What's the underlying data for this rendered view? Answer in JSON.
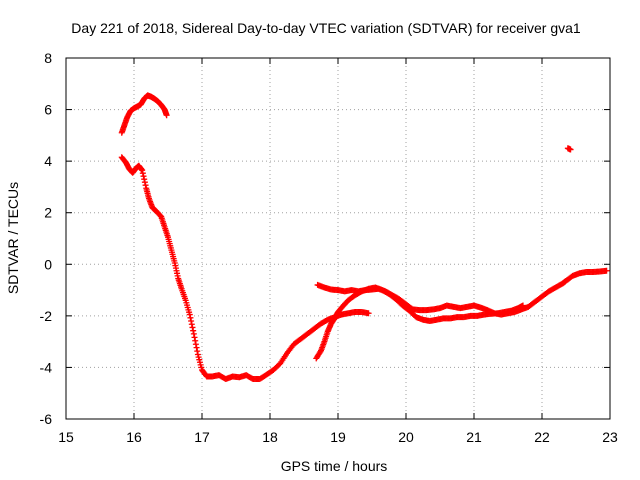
{
  "chart_data": {
    "type": "scatter",
    "title": "Day 221 of 2018, Sidereal Day-to-day VTEC variation (SDTVAR) for receiver gva1",
    "xlabel": "GPS time / hours",
    "ylabel": "SDTVAR / TECUs",
    "xlim": [
      15,
      23
    ],
    "ylim": [
      -6,
      8
    ],
    "xticks": [
      "15",
      "16",
      "17",
      "18",
      "19",
      "20",
      "21",
      "22",
      "23"
    ],
    "yticks": [
      "-6",
      "-4",
      "-2",
      "0",
      "2",
      "4",
      "6",
      "8"
    ],
    "grid": true,
    "marker": "+",
    "series": [
      {
        "name": "SDTVAR",
        "color": "#ff0000",
        "segments": [
          [
            [
              15.82,
              5.1
            ],
            [
              15.86,
              5.4
            ],
            [
              15.9,
              5.7
            ],
            [
              15.95,
              5.95
            ],
            [
              16.0,
              6.05
            ],
            [
              16.05,
              6.12
            ],
            [
              16.1,
              6.2
            ],
            [
              16.15,
              6.42
            ],
            [
              16.2,
              6.55
            ],
            [
              16.25,
              6.5
            ],
            [
              16.3,
              6.42
            ],
            [
              16.35,
              6.32
            ],
            [
              16.4,
              6.18
            ],
            [
              16.45,
              6.0
            ],
            [
              16.48,
              5.78
            ]
          ],
          [
            [
              15.82,
              4.15
            ],
            [
              15.88,
              3.95
            ],
            [
              15.93,
              3.7
            ],
            [
              15.98,
              3.55
            ],
            [
              16.02,
              3.7
            ],
            [
              16.07,
              3.82
            ],
            [
              16.12,
              3.65
            ],
            [
              16.18,
              2.95
            ],
            [
              16.22,
              2.55
            ],
            [
              16.27,
              2.2
            ],
            [
              16.33,
              2.05
            ],
            [
              16.4,
              1.85
            ],
            [
              16.45,
              1.45
            ],
            [
              16.5,
              1.05
            ],
            [
              16.55,
              0.55
            ],
            [
              16.6,
              0.05
            ],
            [
              16.65,
              -0.55
            ],
            [
              16.7,
              -0.95
            ],
            [
              16.76,
              -1.4
            ],
            [
              16.82,
              -1.95
            ],
            [
              16.88,
              -2.7
            ],
            [
              16.94,
              -3.5
            ],
            [
              17.0,
              -4.1
            ],
            [
              17.07,
              -4.35
            ],
            [
              17.15,
              -4.35
            ],
            [
              17.25,
              -4.3
            ],
            [
              17.35,
              -4.45
            ],
            [
              17.45,
              -4.35
            ],
            [
              17.55,
              -4.38
            ],
            [
              17.65,
              -4.3
            ],
            [
              17.75,
              -4.45
            ],
            [
              17.85,
              -4.45
            ],
            [
              17.95,
              -4.28
            ],
            [
              18.05,
              -4.1
            ],
            [
              18.15,
              -3.85
            ],
            [
              18.25,
              -3.45
            ],
            [
              18.35,
              -3.1
            ],
            [
              18.45,
              -2.9
            ],
            [
              18.55,
              -2.7
            ],
            [
              18.65,
              -2.5
            ],
            [
              18.75,
              -2.3
            ],
            [
              18.85,
              -2.15
            ],
            [
              18.95,
              -2.05
            ],
            [
              19.05,
              -1.95
            ],
            [
              19.15,
              -1.9
            ],
            [
              19.25,
              -1.85
            ],
            [
              19.35,
              -1.85
            ],
            [
              19.45,
              -1.9
            ]
          ],
          [
            [
              18.68,
              -3.65
            ],
            [
              18.75,
              -3.35
            ],
            [
              18.8,
              -3.0
            ],
            [
              18.85,
              -2.6
            ],
            [
              18.9,
              -2.3
            ],
            [
              18.95,
              -2.1
            ],
            [
              19.0,
              -1.85
            ],
            [
              19.08,
              -1.6
            ],
            [
              19.15,
              -1.4
            ],
            [
              19.25,
              -1.2
            ],
            [
              19.35,
              -1.05
            ],
            [
              19.45,
              -0.95
            ],
            [
              19.55,
              -0.9
            ],
            [
              19.65,
              -1.0
            ],
            [
              19.75,
              -1.15
            ],
            [
              19.85,
              -1.35
            ],
            [
              19.95,
              -1.6
            ],
            [
              20.05,
              -1.8
            ],
            [
              20.15,
              -2.05
            ],
            [
              20.25,
              -2.15
            ],
            [
              20.35,
              -2.2
            ],
            [
              20.45,
              -2.15
            ],
            [
              20.55,
              -2.1
            ],
            [
              20.65,
              -2.1
            ],
            [
              20.75,
              -2.05
            ],
            [
              20.85,
              -2.05
            ],
            [
              20.95,
              -2.0
            ],
            [
              21.05,
              -2.0
            ],
            [
              21.15,
              -1.95
            ],
            [
              21.25,
              -1.92
            ],
            [
              21.35,
              -1.9
            ],
            [
              21.45,
              -1.85
            ],
            [
              21.55,
              -1.8
            ],
            [
              21.65,
              -1.7
            ],
            [
              21.72,
              -1.6
            ]
          ],
          [
            [
              18.7,
              -0.8
            ],
            [
              18.8,
              -0.9
            ],
            [
              18.9,
              -0.98
            ],
            [
              19.0,
              -1.0
            ],
            [
              19.1,
              -1.05
            ],
            [
              19.2,
              -1.0
            ],
            [
              19.3,
              -1.05
            ],
            [
              19.4,
              -1.0
            ],
            [
              19.5,
              -0.98
            ],
            [
              19.6,
              -0.95
            ],
            [
              19.7,
              -1.05
            ],
            [
              19.8,
              -1.2
            ],
            [
              19.9,
              -1.35
            ],
            [
              20.0,
              -1.55
            ],
            [
              20.1,
              -1.75
            ],
            [
              20.2,
              -1.78
            ],
            [
              20.3,
              -1.78
            ],
            [
              20.4,
              -1.75
            ],
            [
              20.5,
              -1.7
            ],
            [
              20.6,
              -1.6
            ],
            [
              20.7,
              -1.65
            ],
            [
              20.8,
              -1.7
            ],
            [
              20.9,
              -1.65
            ],
            [
              21.0,
              -1.6
            ],
            [
              21.1,
              -1.68
            ],
            [
              21.2,
              -1.78
            ],
            [
              21.3,
              -1.9
            ],
            [
              21.4,
              -1.95
            ],
            [
              21.5,
              -1.9
            ],
            [
              21.6,
              -1.85
            ],
            [
              21.7,
              -1.75
            ],
            [
              21.8,
              -1.65
            ],
            [
              21.9,
              -1.45
            ],
            [
              22.0,
              -1.25
            ],
            [
              22.1,
              -1.05
            ],
            [
              22.2,
              -0.9
            ],
            [
              22.3,
              -0.75
            ],
            [
              22.35,
              -0.65
            ],
            [
              22.45,
              -0.45
            ],
            [
              22.55,
              -0.35
            ],
            [
              22.65,
              -0.3
            ],
            [
              22.75,
              -0.3
            ],
            [
              22.85,
              -0.28
            ],
            [
              22.95,
              -0.25
            ]
          ],
          [
            [
              22.38,
              4.5
            ],
            [
              22.42,
              4.45
            ]
          ]
        ]
      }
    ]
  }
}
